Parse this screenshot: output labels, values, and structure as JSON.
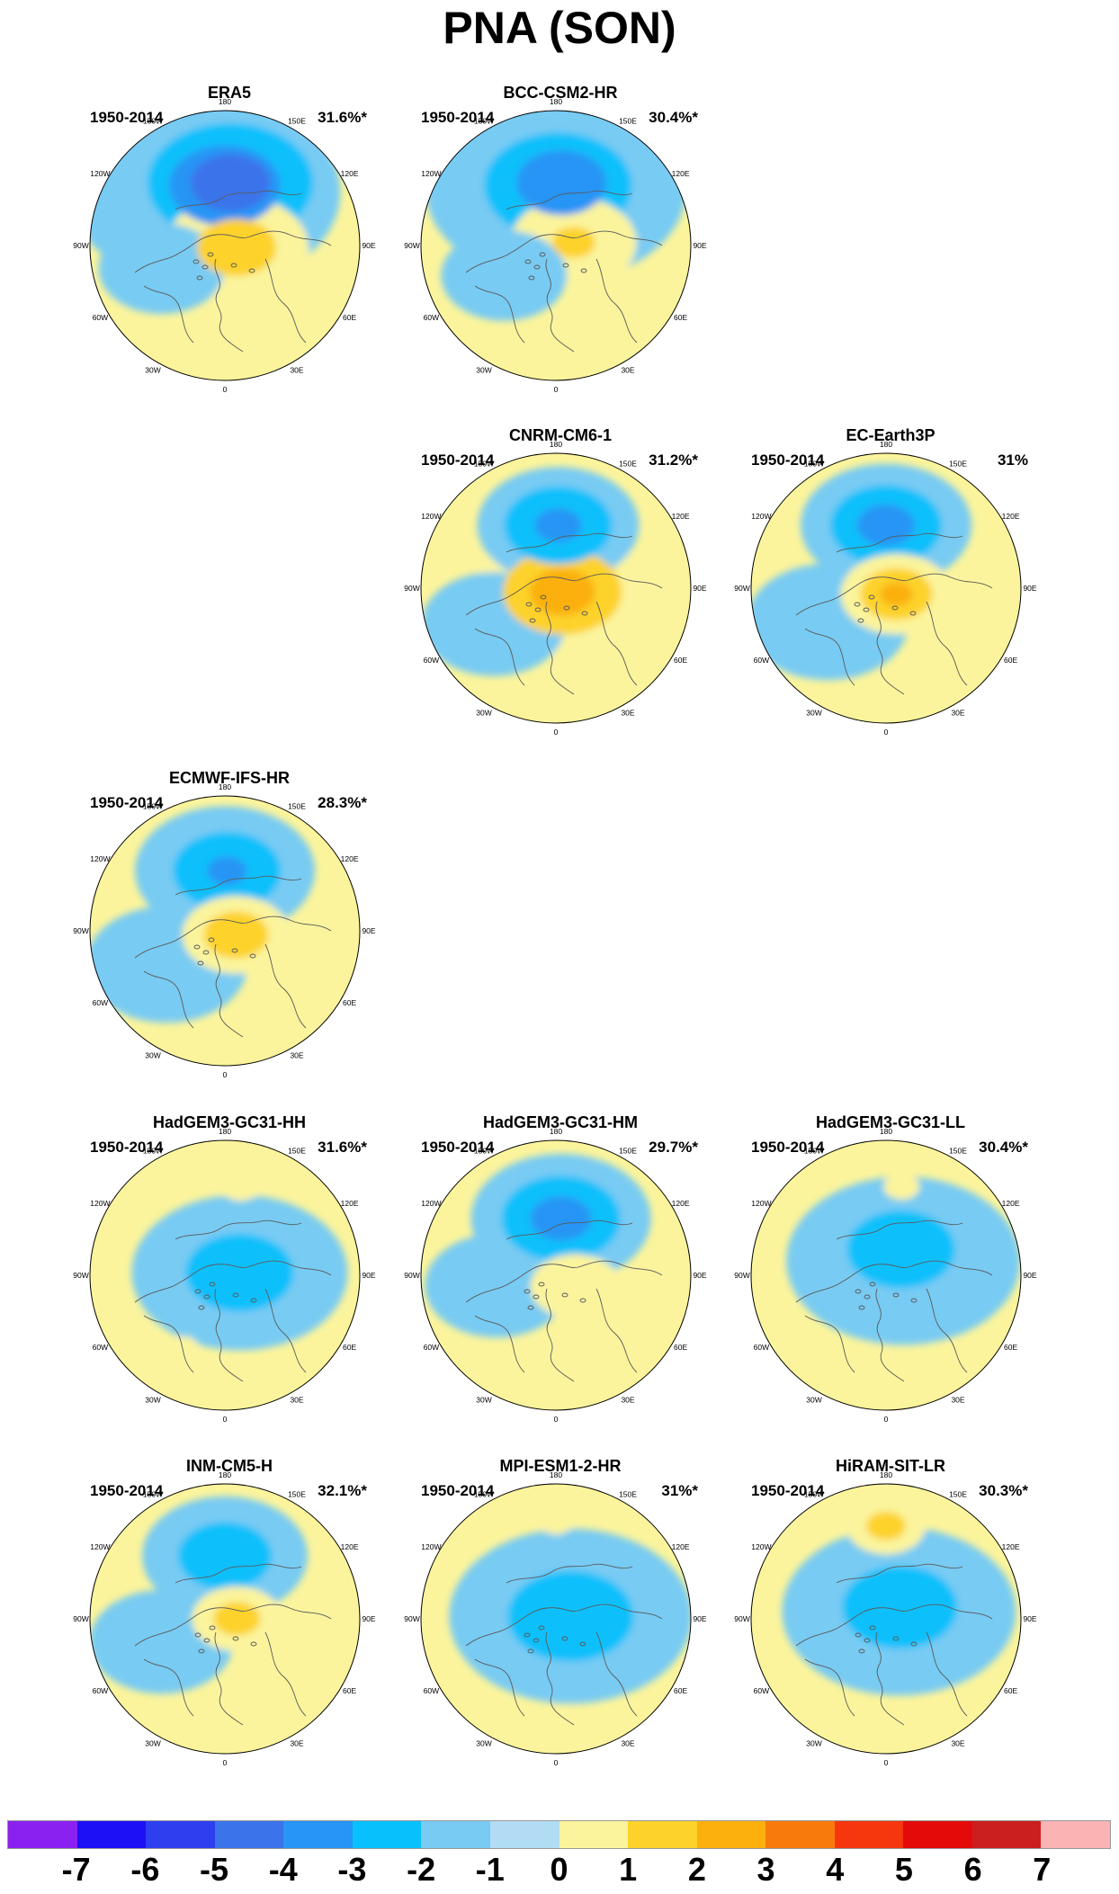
{
  "title": "PNA (SON)",
  "panels": [
    {
      "model": "ERA5",
      "period": "1950-2014",
      "variance": "31.6%*",
      "anomalies": [
        {
          "lon": 175,
          "colat": 42,
          "level": -4,
          "r": 44
        },
        {
          "lon": 180,
          "colat": 40,
          "level": -3,
          "r": 62
        },
        {
          "lon": 175,
          "colat": 42,
          "level": -2,
          "r": 92
        },
        {
          "lon": 200,
          "colat": 38,
          "level": -1,
          "r": 150
        },
        {
          "lon": 80,
          "colat": 8,
          "level": 1,
          "r": 80
        },
        {
          "lon": 80,
          "colat": 8,
          "level": 2,
          "r": 44
        },
        {
          "lon": 290,
          "colat": 45,
          "level": -1,
          "r": 70
        }
      ]
    },
    {
      "model": "BCC-CSM2-HR",
      "period": "1950-2014",
      "variance": "30.4%*",
      "anomalies": [
        {
          "lon": 175,
          "colat": 42,
          "level": -3,
          "r": 50
        },
        {
          "lon": 178,
          "colat": 40,
          "level": -2,
          "r": 82
        },
        {
          "lon": 180,
          "colat": 38,
          "level": -1,
          "r": 145
        },
        {
          "lon": 100,
          "colat": 12,
          "level": 1,
          "r": 70
        },
        {
          "lon": 100,
          "colat": 12,
          "level": 2,
          "r": 24
        },
        {
          "lon": 300,
          "colat": 40,
          "level": -1,
          "r": 70
        }
      ]
    },
    {
      "model": "CNRM-CM6-1",
      "period": "1950-2014",
      "variance": "31.2%*",
      "anomalies": [
        {
          "lon": 178,
          "colat": 42,
          "level": -2,
          "r": 60
        },
        {
          "lon": 178,
          "colat": 42,
          "level": -1,
          "r": 90
        },
        {
          "lon": 178,
          "colat": 42,
          "level": -3,
          "r": 26
        },
        {
          "lon": 60,
          "colat": 5,
          "level": 1,
          "r": 100
        },
        {
          "lon": 60,
          "colat": 5,
          "level": 2,
          "r": 66
        },
        {
          "lon": 60,
          "colat": 5,
          "level": 3,
          "r": 36
        },
        {
          "lon": 300,
          "colat": 48,
          "level": -1,
          "r": 80
        }
      ]
    },
    {
      "model": "EC-Earth3P",
      "period": "1950-2014",
      "variance": "31%",
      "anomalies": [
        {
          "lon": 180,
          "colat": 42,
          "level": -1,
          "r": 95
        },
        {
          "lon": 180,
          "colat": 42,
          "level": -2,
          "r": 62
        },
        {
          "lon": 180,
          "colat": 42,
          "level": -3,
          "r": 32
        },
        {
          "lon": 60,
          "colat": 8,
          "level": 1,
          "r": 62
        },
        {
          "lon": 60,
          "colat": 8,
          "level": 2,
          "r": 40
        },
        {
          "lon": 60,
          "colat": 8,
          "level": 3,
          "r": 18
        },
        {
          "lon": 300,
          "colat": 45,
          "level": -1,
          "r": 90
        }
      ]
    },
    {
      "model": "ECMWF-IFS-HR",
      "period": "1950-2014",
      "variance": "28.3%*",
      "anomalies": [
        {
          "lon": 180,
          "colat": 40,
          "level": -1,
          "r": 100
        },
        {
          "lon": 178,
          "colat": 40,
          "level": -2,
          "r": 60
        },
        {
          "lon": 178,
          "colat": 40,
          "level": -3,
          "r": 22
        },
        {
          "lon": 70,
          "colat": 8,
          "level": 1,
          "r": 60
        },
        {
          "lon": 70,
          "colat": 8,
          "level": 2,
          "r": 36
        },
        {
          "lon": 300,
          "colat": 45,
          "level": -1,
          "r": 90
        }
      ]
    },
    {
      "model": "HadGEM3-GC31-HH",
      "period": "1950-2014",
      "variance": "31.6%*",
      "anomalies": [
        {
          "lon": 100,
          "colat": 10,
          "level": -1,
          "r": 120
        },
        {
          "lon": 100,
          "colat": 10,
          "level": -2,
          "r": 60
        },
        {
          "lon": 170,
          "colat": 60,
          "level": 1,
          "r": 22
        },
        {
          "lon": 330,
          "colat": 55,
          "level": 1,
          "r": 16
        }
      ]
    },
    {
      "model": "HadGEM3-GC31-HM",
      "period": "1950-2014",
      "variance": "29.7%*",
      "anomalies": [
        {
          "lon": 175,
          "colat": 38,
          "level": -1,
          "r": 100
        },
        {
          "lon": 175,
          "colat": 38,
          "level": -2,
          "r": 66
        },
        {
          "lon": 175,
          "colat": 38,
          "level": -3,
          "r": 34
        },
        {
          "lon": 60,
          "colat": 15,
          "level": 1,
          "r": 50
        },
        {
          "lon": 280,
          "colat": 40,
          "level": -1,
          "r": 80
        }
      ]
    },
    {
      "model": "HadGEM3-GC31-LL",
      "period": "1950-2014",
      "variance": "30.4%*",
      "anomalies": [
        {
          "lon": 130,
          "colat": 15,
          "level": -1,
          "r": 130
        },
        {
          "lon": 150,
          "colat": 20,
          "level": -2,
          "r": 60
        },
        {
          "lon": 170,
          "colat": 60,
          "level": 1,
          "r": 20
        }
      ]
    },
    {
      "model": "INM-CM5-H",
      "period": "1950-2014",
      "variance": "32.1%*",
      "anomalies": [
        {
          "lon": 180,
          "colat": 42,
          "level": -1,
          "r": 92
        },
        {
          "lon": 180,
          "colat": 42,
          "level": -2,
          "r": 52
        },
        {
          "lon": 90,
          "colat": 8,
          "level": 1,
          "r": 50
        },
        {
          "lon": 90,
          "colat": 8,
          "level": 2,
          "r": 26
        },
        {
          "lon": 290,
          "colat": 45,
          "level": -1,
          "r": 80
        }
      ]
    },
    {
      "model": "MPI-ESM1-2-HR",
      "period": "1950-2014",
      "variance": "31%*",
      "anomalies": [
        {
          "lon": 100,
          "colat": 10,
          "level": -1,
          "r": 135
        },
        {
          "lon": 100,
          "colat": 10,
          "level": -2,
          "r": 70
        },
        {
          "lon": 180,
          "colat": 65,
          "level": 1,
          "r": 20
        }
      ]
    },
    {
      "model": "HiRAM-SIT-LR",
      "period": "1950-2014",
      "variance": "30.3%*",
      "anomalies": [
        {
          "lon": 120,
          "colat": 10,
          "level": -1,
          "r": 130
        },
        {
          "lon": 130,
          "colat": 12,
          "level": -2,
          "r": 64
        },
        {
          "lon": 180,
          "colat": 62,
          "level": 1,
          "r": 44
        },
        {
          "lon": 180,
          "colat": 62,
          "level": 2,
          "r": 22
        }
      ]
    }
  ],
  "lon_labels": [
    "180",
    "150E",
    "120E",
    "90E",
    "60E",
    "30E",
    "0",
    "30W",
    "60W",
    "90W",
    "120W",
    "150W"
  ],
  "colorbar": {
    "labels": [
      "-7",
      "-6",
      "-5",
      "-4",
      "-3",
      "-2",
      "-1",
      "0",
      "1",
      "2",
      "3",
      "4",
      "5",
      "6",
      "7"
    ],
    "colors": [
      "#8a21f0",
      "#1d10f5",
      "#2e3ff0",
      "#3b73ea",
      "#2795f5",
      "#08c0fb",
      "#78cbf3",
      "#b1dcf4",
      "#fbf49c",
      "#fdd22a",
      "#fbb00d",
      "#f97a0c",
      "#f6360d",
      "#e40a0a",
      "#cb1f1f",
      "#fbb3b3"
    ]
  }
}
